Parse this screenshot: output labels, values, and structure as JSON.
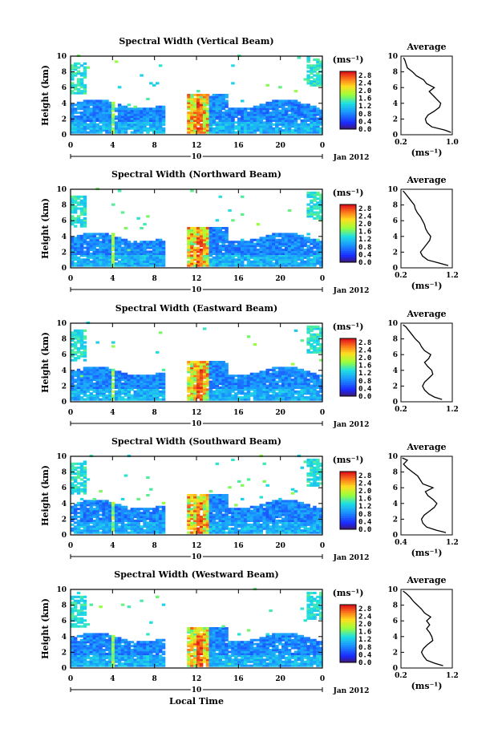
{
  "page": {
    "xlabel": "Local Time",
    "date_label": "Jan 2012"
  },
  "chart_data": [
    {
      "type": "heatmap",
      "title": "Spectral Width (Vertical Beam)",
      "xlabel": "",
      "ylabel": "Height (km)",
      "xlim": [
        0,
        24
      ],
      "ylim": [
        0,
        10
      ],
      "xticks": [
        "0",
        "4",
        "8",
        "12",
        "16",
        "20",
        "0"
      ],
      "yticks": [
        "0",
        "2",
        "4",
        "6",
        "8",
        "10"
      ],
      "day_marker": "10",
      "colorbar": {
        "unit": "(ms⁻¹)",
        "ticks": [
          "0.0",
          "0.4",
          "0.8",
          "1.2",
          "1.6",
          "2.0",
          "2.4",
          "2.8"
        ],
        "range": [
          0,
          3.0
        ]
      },
      "data_gap_hours": [
        9.0,
        10.9
      ],
      "average_profile": {
        "title": "Average",
        "xlabel": "(ms⁻¹)",
        "ylabel": "",
        "xlim": [
          0.2,
          1.0
        ],
        "xticks": [
          "0.2",
          "1.0"
        ],
        "ylim": [
          0,
          10
        ],
        "yticks": [
          "0",
          "2",
          "4",
          "6",
          "8",
          "10"
        ],
        "height_km": [
          0.3,
          0.6,
          1.0,
          1.5,
          2.0,
          2.5,
          3.0,
          3.5,
          4.0,
          4.5,
          5.0,
          5.5,
          6.0,
          6.5,
          7.0,
          7.5,
          8.0,
          8.5,
          9.0,
          9.5,
          9.8
        ],
        "width_ms": [
          0.98,
          0.88,
          0.68,
          0.6,
          0.58,
          0.62,
          0.72,
          0.8,
          0.82,
          0.76,
          0.7,
          0.64,
          0.72,
          0.6,
          0.55,
          0.44,
          0.38,
          0.3,
          0.28,
          0.26,
          0.24
        ]
      }
    },
    {
      "type": "heatmap",
      "title": "Spectral Width (Northward Beam)",
      "xlabel": "",
      "ylabel": "Height (km)",
      "xlim": [
        0,
        24
      ],
      "ylim": [
        0,
        10
      ],
      "xticks": [
        "0",
        "4",
        "8",
        "12",
        "16",
        "20",
        "0"
      ],
      "yticks": [
        "0",
        "2",
        "4",
        "6",
        "8",
        "10"
      ],
      "day_marker": "10",
      "colorbar": {
        "unit": "(ms⁻¹)",
        "ticks": [
          "0.0",
          "0.4",
          "0.8",
          "1.2",
          "1.6",
          "2.0",
          "2.4",
          "2.8"
        ],
        "range": [
          0,
          3.0
        ]
      },
      "data_gap_hours": [
        9.0,
        10.9
      ],
      "average_profile": {
        "title": "Average",
        "xlabel": "(ms⁻¹)",
        "ylabel": "",
        "xlim": [
          0.2,
          1.2
        ],
        "xticks": [
          "0.2",
          "1.2"
        ],
        "ylim": [
          0,
          10
        ],
        "yticks": [
          "0",
          "2",
          "4",
          "6",
          "8",
          "10"
        ],
        "height_km": [
          0.3,
          0.6,
          1.0,
          1.5,
          2.0,
          2.5,
          3.0,
          3.5,
          4.0,
          4.5,
          5.0,
          5.5,
          6.0,
          6.5,
          7.0,
          7.5,
          8.0,
          8.5,
          9.0,
          9.5,
          9.8
        ],
        "width_ms": [
          1.12,
          0.95,
          0.72,
          0.62,
          0.58,
          0.64,
          0.7,
          0.76,
          0.78,
          0.72,
          0.68,
          0.66,
          0.62,
          0.58,
          0.52,
          0.48,
          0.46,
          0.4,
          0.34,
          0.28,
          0.24
        ]
      }
    },
    {
      "type": "heatmap",
      "title": "Spectral Width (Eastward Beam)",
      "xlabel": "",
      "ylabel": "Height (km)",
      "xlim": [
        0,
        24
      ],
      "ylim": [
        0,
        10
      ],
      "xticks": [
        "0",
        "4",
        "8",
        "12",
        "16",
        "20",
        "0"
      ],
      "yticks": [
        "0",
        "2",
        "4",
        "6",
        "8",
        "10"
      ],
      "day_marker": "10",
      "colorbar": {
        "unit": "(ms⁻¹)",
        "ticks": [
          "0.0",
          "0.4",
          "0.8",
          "1.2",
          "1.6",
          "2.0",
          "2.4",
          "2.8"
        ],
        "range": [
          0,
          3.0
        ]
      },
      "data_gap_hours": [
        9.0,
        10.9
      ],
      "average_profile": {
        "title": "Average",
        "xlabel": "",
        "ylabel": "",
        "xlim": [
          0.2,
          1.2
        ],
        "xticks": [
          "0.2",
          "1.2"
        ],
        "ylim": [
          0,
          10
        ],
        "yticks": [
          "0",
          "2",
          "4",
          "6",
          "8",
          "10"
        ],
        "height_km": [
          0.3,
          0.6,
          1.0,
          1.5,
          2.0,
          2.5,
          3.0,
          3.5,
          4.0,
          4.5,
          5.0,
          5.5,
          6.0,
          6.5,
          7.0,
          7.5,
          8.0,
          8.5,
          9.0,
          9.5,
          9.8
        ],
        "width_ms": [
          1.0,
          0.85,
          0.74,
          0.66,
          0.62,
          0.66,
          0.74,
          0.82,
          0.8,
          0.72,
          0.66,
          0.74,
          0.78,
          0.66,
          0.6,
          0.56,
          0.48,
          0.42,
          0.36,
          0.3,
          0.24
        ]
      }
    },
    {
      "type": "heatmap",
      "title": "Spectral Width (Southward Beam)",
      "xlabel": "",
      "ylabel": "Height (km)",
      "xlim": [
        0,
        24
      ],
      "ylim": [
        0,
        10
      ],
      "xticks": [
        "0",
        "4",
        "8",
        "12",
        "16",
        "20",
        "0"
      ],
      "yticks": [
        "0",
        "2",
        "4",
        "6",
        "8",
        "10"
      ],
      "day_marker": "10",
      "colorbar": {
        "unit": "(ms⁻¹)",
        "ticks": [
          "0.0",
          "0.4",
          "0.8",
          "1.2",
          "1.6",
          "2.0",
          "2.4",
          "2.8"
        ],
        "range": [
          0,
          3.0
        ]
      },
      "data_gap_hours": [
        9.0,
        10.9
      ],
      "average_profile": {
        "title": "Average",
        "xlabel": "(ms⁻¹)",
        "ylabel": "",
        "xlim": [
          0.4,
          1.2
        ],
        "xticks": [
          "0.4",
          "1.2"
        ],
        "ylim": [
          0,
          10
        ],
        "yticks": [
          "0",
          "2",
          "4",
          "6",
          "8",
          "10"
        ],
        "height_km": [
          0.3,
          0.6,
          1.0,
          1.5,
          2.0,
          2.5,
          3.0,
          3.5,
          4.0,
          4.5,
          5.0,
          5.5,
          6.0,
          6.5,
          7.0,
          7.5,
          8.0,
          8.5,
          9.0,
          9.5,
          9.8
        ],
        "width_ms": [
          1.1,
          0.95,
          0.8,
          0.74,
          0.72,
          0.76,
          0.84,
          0.92,
          0.96,
          0.9,
          0.82,
          0.78,
          0.9,
          0.74,
          0.7,
          0.66,
          0.58,
          0.5,
          0.44,
          0.5,
          0.42
        ]
      }
    },
    {
      "type": "heatmap",
      "title": "Spectral Width (Westward Beam)",
      "xlabel": "Local Time",
      "ylabel": "Height (km)",
      "xlim": [
        0,
        24
      ],
      "ylim": [
        0,
        10
      ],
      "xticks": [
        "0",
        "4",
        "8",
        "12",
        "16",
        "20",
        "0"
      ],
      "yticks": [
        "0",
        "2",
        "4",
        "6",
        "8",
        "10"
      ],
      "day_marker": "10",
      "colorbar": {
        "unit": "(ms⁻¹)",
        "ticks": [
          "0.0",
          "0.4",
          "0.8",
          "1.2",
          "1.6",
          "2.0",
          "2.4",
          "2.8"
        ],
        "range": [
          0,
          3.0
        ]
      },
      "data_gap_hours": [
        9.0,
        10.9
      ],
      "average_profile": {
        "title": "Average",
        "xlabel": "(ms⁻¹)",
        "ylabel": "",
        "xlim": [
          0.2,
          1.2
        ],
        "xticks": [
          "0.2",
          "1.2"
        ],
        "ylim": [
          0,
          10
        ],
        "yticks": [
          "0",
          "2",
          "4",
          "6",
          "8",
          "10"
        ],
        "height_km": [
          0.3,
          0.6,
          1.0,
          1.5,
          2.0,
          2.5,
          3.0,
          3.5,
          4.0,
          4.5,
          5.0,
          5.5,
          6.0,
          6.5,
          7.0,
          7.5,
          8.0,
          8.5,
          9.0,
          9.5,
          9.8
        ],
        "width_ms": [
          1.02,
          0.86,
          0.7,
          0.64,
          0.6,
          0.64,
          0.72,
          0.82,
          0.8,
          0.76,
          0.7,
          0.76,
          0.7,
          0.78,
          0.66,
          0.6,
          0.52,
          0.44,
          0.38,
          0.3,
          0.24
        ]
      }
    }
  ]
}
